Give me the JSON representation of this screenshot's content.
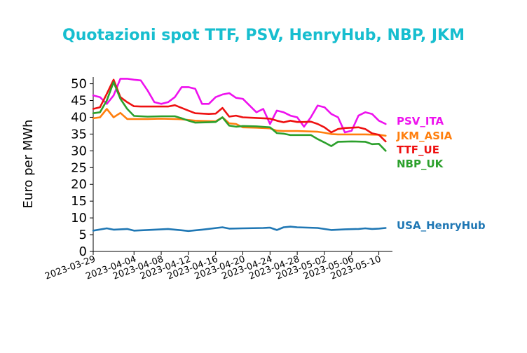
{
  "chart_data": {
    "type": "line",
    "title": "Quotazioni spot TTF, PSV, HenryHub, NBP, JKM",
    "ylabel": "Euro per MWh",
    "xlabel": "",
    "ylim": [
      0,
      52
    ],
    "yticks": [
      0,
      5,
      10,
      15,
      20,
      25,
      30,
      35,
      40,
      45,
      50
    ],
    "xlim": [
      "2023-03-29",
      "2023-05-12"
    ],
    "xticks": [
      "2023-03-29",
      "2023-04-04",
      "2023-04-08",
      "2023-04-12",
      "2023-04-16",
      "2023-04-20",
      "2023-04-24",
      "2023-04-28",
      "2023-05-02",
      "2023-05-06",
      "2023-05-10"
    ],
    "grid": false,
    "legend": "labels at line ends (right)",
    "series": [
      {
        "name": "PSV_ITA",
        "color": "#ee11ee",
        "points": [
          [
            "2023-03-29",
            46.5
          ],
          [
            "2023-03-30",
            46.0
          ],
          [
            "2023-03-31",
            44.0
          ],
          [
            "2023-04-01",
            46.5
          ],
          [
            "2023-04-02",
            51.5
          ],
          [
            "2023-04-03",
            51.5
          ],
          [
            "2023-04-04",
            51.2
          ],
          [
            "2023-04-05",
            51.0
          ],
          [
            "2023-04-06",
            48.0
          ],
          [
            "2023-04-07",
            44.5
          ],
          [
            "2023-04-08",
            44.0
          ],
          [
            "2023-04-09",
            44.5
          ],
          [
            "2023-04-10",
            46.0
          ],
          [
            "2023-04-11",
            49.0
          ],
          [
            "2023-04-12",
            49.0
          ],
          [
            "2023-04-13",
            48.5
          ],
          [
            "2023-04-14",
            44.0
          ],
          [
            "2023-04-15",
            44.0
          ],
          [
            "2023-04-16",
            46.0
          ],
          [
            "2023-04-17",
            46.8
          ],
          [
            "2023-04-18",
            47.2
          ],
          [
            "2023-04-19",
            45.8
          ],
          [
            "2023-04-20",
            45.5
          ],
          [
            "2023-04-21",
            43.5
          ],
          [
            "2023-04-22",
            41.5
          ],
          [
            "2023-04-23",
            42.5
          ],
          [
            "2023-04-24",
            38.0
          ],
          [
            "2023-04-25",
            42.0
          ],
          [
            "2023-04-26",
            41.5
          ],
          [
            "2023-04-27",
            40.5
          ],
          [
            "2023-04-28",
            40.0
          ],
          [
            "2023-04-29",
            37.2
          ],
          [
            "2023-04-30",
            40.0
          ],
          [
            "2023-05-01",
            43.5
          ],
          [
            "2023-05-02",
            43.0
          ],
          [
            "2023-05-03",
            41.0
          ],
          [
            "2023-05-04",
            40.0
          ],
          [
            "2023-05-05",
            35.5
          ],
          [
            "2023-05-06",
            36.0
          ],
          [
            "2023-05-07",
            40.5
          ],
          [
            "2023-05-08",
            41.5
          ],
          [
            "2023-05-09",
            41.0
          ],
          [
            "2023-05-10",
            39.0
          ],
          [
            "2023-05-11",
            38.0
          ]
        ]
      },
      {
        "name": "JKM_ASIA",
        "color": "#ff7f0e",
        "points": [
          [
            "2023-03-29",
            39.7
          ],
          [
            "2023-03-30",
            40.0
          ],
          [
            "2023-03-31",
            42.5
          ],
          [
            "2023-04-01",
            40.0
          ],
          [
            "2023-04-02",
            41.3
          ],
          [
            "2023-04-03",
            39.5
          ],
          [
            "2023-04-04",
            39.5
          ],
          [
            "2023-04-06",
            39.5
          ],
          [
            "2023-04-08",
            39.6
          ],
          [
            "2023-04-10",
            39.5
          ],
          [
            "2023-04-11",
            39.4
          ],
          [
            "2023-04-12",
            39.2
          ],
          [
            "2023-04-13",
            39.0
          ],
          [
            "2023-04-14",
            38.9
          ],
          [
            "2023-04-16",
            38.8
          ],
          [
            "2023-04-17",
            40.0
          ],
          [
            "2023-04-18",
            38.2
          ],
          [
            "2023-04-19",
            38.0
          ],
          [
            "2023-04-20",
            37.0
          ],
          [
            "2023-04-22",
            36.9
          ],
          [
            "2023-04-24",
            36.7
          ],
          [
            "2023-04-25",
            36.0
          ],
          [
            "2023-04-26",
            35.9
          ],
          [
            "2023-04-28",
            35.9
          ],
          [
            "2023-05-01",
            35.7
          ],
          [
            "2023-05-02",
            35.4
          ],
          [
            "2023-05-03",
            35.0
          ],
          [
            "2023-05-04",
            34.9
          ],
          [
            "2023-05-06",
            34.9
          ],
          [
            "2023-05-08",
            34.9
          ],
          [
            "2023-05-10",
            34.8
          ],
          [
            "2023-05-11",
            34.5
          ]
        ]
      },
      {
        "name": "TTF_UE",
        "color": "#ee1111",
        "points": [
          [
            "2023-03-29",
            42.5
          ],
          [
            "2023-03-30",
            43.0
          ],
          [
            "2023-03-31",
            47.0
          ],
          [
            "2023-04-01",
            51.2
          ],
          [
            "2023-04-02",
            46.0
          ],
          [
            "2023-04-03",
            44.5
          ],
          [
            "2023-04-04",
            43.3
          ],
          [
            "2023-04-05",
            43.2
          ],
          [
            "2023-04-07",
            43.2
          ],
          [
            "2023-04-09",
            43.2
          ],
          [
            "2023-04-10",
            43.6
          ],
          [
            "2023-04-11",
            42.8
          ],
          [
            "2023-04-12",
            42.0
          ],
          [
            "2023-04-13",
            41.2
          ],
          [
            "2023-04-15",
            41.0
          ],
          [
            "2023-04-16",
            41.1
          ],
          [
            "2023-04-17",
            42.8
          ],
          [
            "2023-04-18",
            40.2
          ],
          [
            "2023-04-19",
            40.5
          ],
          [
            "2023-04-20",
            40.0
          ],
          [
            "2023-04-22",
            39.8
          ],
          [
            "2023-04-24",
            39.6
          ],
          [
            "2023-04-25",
            39.0
          ],
          [
            "2023-04-26",
            38.5
          ],
          [
            "2023-04-27",
            39.0
          ],
          [
            "2023-04-28",
            38.6
          ],
          [
            "2023-04-29",
            38.6
          ],
          [
            "2023-04-30",
            38.7
          ],
          [
            "2023-05-01",
            38.0
          ],
          [
            "2023-05-02",
            37.0
          ],
          [
            "2023-05-03",
            35.5
          ],
          [
            "2023-05-04",
            36.5
          ],
          [
            "2023-05-05",
            36.8
          ],
          [
            "2023-05-07",
            37.0
          ],
          [
            "2023-05-08",
            36.5
          ],
          [
            "2023-05-09",
            35.2
          ],
          [
            "2023-05-10",
            34.8
          ],
          [
            "2023-05-11",
            32.8
          ]
        ]
      },
      {
        "name": "NBP_UK",
        "color": "#2ca02c",
        "points": [
          [
            "2023-03-29",
            41.2
          ],
          [
            "2023-03-30",
            41.5
          ],
          [
            "2023-03-31",
            45.0
          ],
          [
            "2023-04-01",
            50.5
          ],
          [
            "2023-04-02",
            45.5
          ],
          [
            "2023-04-03",
            42.5
          ],
          [
            "2023-04-04",
            40.4
          ],
          [
            "2023-04-06",
            40.2
          ],
          [
            "2023-04-08",
            40.3
          ],
          [
            "2023-04-10",
            40.3
          ],
          [
            "2023-04-11",
            39.7
          ],
          [
            "2023-04-12",
            39.0
          ],
          [
            "2023-04-13",
            38.4
          ],
          [
            "2023-04-15",
            38.5
          ],
          [
            "2023-04-16",
            38.6
          ],
          [
            "2023-04-17",
            40.0
          ],
          [
            "2023-04-18",
            37.5
          ],
          [
            "2023-04-19",
            37.2
          ],
          [
            "2023-04-20",
            37.4
          ],
          [
            "2023-04-22",
            37.3
          ],
          [
            "2023-04-24",
            37.0
          ],
          [
            "2023-04-25",
            35.3
          ],
          [
            "2023-04-26",
            35.1
          ],
          [
            "2023-04-27",
            34.7
          ],
          [
            "2023-04-29",
            34.7
          ],
          [
            "2023-04-30",
            34.7
          ],
          [
            "2023-05-01",
            33.5
          ],
          [
            "2023-05-02",
            32.5
          ],
          [
            "2023-05-03",
            31.4
          ],
          [
            "2023-05-04",
            32.7
          ],
          [
            "2023-05-06",
            32.8
          ],
          [
            "2023-05-08",
            32.7
          ],
          [
            "2023-05-09",
            32.0
          ],
          [
            "2023-05-10",
            32.1
          ],
          [
            "2023-05-11",
            30.0
          ]
        ]
      },
      {
        "name": "USA_HenryHub",
        "color": "#1f77b4",
        "points": [
          [
            "2023-03-29",
            6.2
          ],
          [
            "2023-03-31",
            6.9
          ],
          [
            "2023-04-01",
            6.5
          ],
          [
            "2023-04-03",
            6.7
          ],
          [
            "2023-04-04",
            6.2
          ],
          [
            "2023-04-06",
            6.4
          ],
          [
            "2023-04-09",
            6.7
          ],
          [
            "2023-04-11",
            6.3
          ],
          [
            "2023-04-12",
            6.1
          ],
          [
            "2023-04-14",
            6.5
          ],
          [
            "2023-04-17",
            7.2
          ],
          [
            "2023-04-18",
            6.8
          ],
          [
            "2023-04-20",
            6.9
          ],
          [
            "2023-04-23",
            7.0
          ],
          [
            "2023-04-24",
            7.1
          ],
          [
            "2023-04-25",
            6.4
          ],
          [
            "2023-04-26",
            7.2
          ],
          [
            "2023-04-27",
            7.4
          ],
          [
            "2023-04-28",
            7.2
          ],
          [
            "2023-05-01",
            7.0
          ],
          [
            "2023-05-03",
            6.4
          ],
          [
            "2023-05-05",
            6.6
          ],
          [
            "2023-05-07",
            6.7
          ],
          [
            "2023-05-08",
            6.9
          ],
          [
            "2023-05-09",
            6.7
          ],
          [
            "2023-05-10",
            6.8
          ],
          [
            "2023-05-11",
            7.0
          ]
        ]
      }
    ]
  }
}
